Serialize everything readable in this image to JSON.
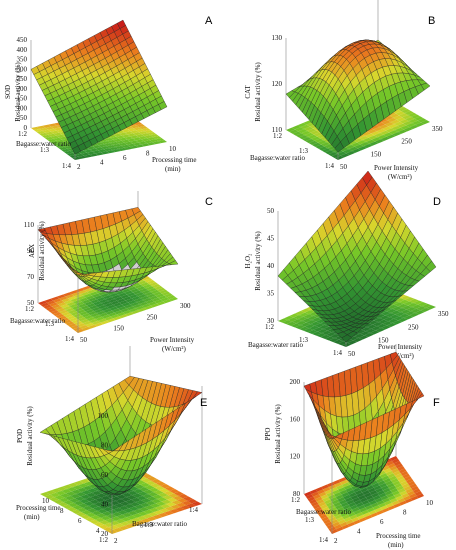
{
  "figure": {
    "panels": [
      {
        "id": "A",
        "label": "A",
        "zlabel": [
          "SOD",
          "Residual activity (%)"
        ],
        "zticks": [
          "0",
          "50",
          "100",
          "150",
          "200",
          "250",
          "300",
          "350",
          "400",
          "450"
        ],
        "xlabel": [
          "Processing time",
          "(min)"
        ],
        "xticks": [
          "2",
          "4",
          "6",
          "8",
          "10"
        ],
        "ylabel": [
          "Bagasse:water ratio"
        ],
        "yticks": [
          "1:4",
          "1:3",
          "1:2"
        ]
      },
      {
        "id": "B",
        "label": "B",
        "zlabel": [
          "CAT",
          "Residual activity (%)"
        ],
        "zticks": [
          "110",
          "120",
          "130"
        ],
        "xlabel": [
          "Power Intensity",
          "(W/cm²)"
        ],
        "xticks": [
          "50",
          "150",
          "250",
          "350"
        ],
        "ylabel": [
          "Bagasse:water ratio"
        ],
        "yticks": [
          "1:4",
          "1:3",
          "1:2"
        ]
      },
      {
        "id": "C",
        "label": "C",
        "zlabel": [
          "APX",
          "Residual activity (%)"
        ],
        "zticks": [
          "50",
          "70",
          "90",
          "110"
        ],
        "xlabel": [
          "Power Intensity",
          "(W/cm²)"
        ],
        "xticks": [
          "50",
          "150",
          "250",
          "300"
        ],
        "ylabel": [
          "Bagasse:water ratio"
        ],
        "yticks": [
          "1:4",
          "1:3",
          "1:2"
        ]
      },
      {
        "id": "D",
        "label": "D",
        "zlabel": [
          "H₂O₂",
          "Residual activity (%)"
        ],
        "zticks": [
          "30",
          "35",
          "40",
          "45",
          "50"
        ],
        "xlabel": [
          "Power Intensity",
          "(W/cm²)"
        ],
        "xticks": [
          "50",
          "150",
          "250",
          "350"
        ],
        "ylabel": [
          "Bagasse:water ratio"
        ],
        "yticks": [
          "1:4",
          "1:3",
          "1:2"
        ]
      },
      {
        "id": "E",
        "label": "E",
        "zlabel": [
          "POD",
          "Residual activity (%)"
        ],
        "zticks": [
          "20",
          "40",
          "60",
          "80",
          "100"
        ],
        "xlabel": [
          "Processing time",
          "(min)"
        ],
        "xticks": [
          "2",
          "4",
          "6",
          "8",
          "10"
        ],
        "ylabel": [
          "Bagasse:water ratio"
        ],
        "yticks": [
          "1:2",
          "1:3",
          "1:4"
        ]
      },
      {
        "id": "F",
        "label": "F",
        "zlabel": [
          "PPO",
          "Residual activity (%)"
        ],
        "zticks": [
          "80",
          "120",
          "160",
          "200"
        ],
        "xlabel": [
          "Processing time",
          "(min)"
        ],
        "xticks": [
          "2",
          "4",
          "6",
          "8",
          "10"
        ],
        "ylabel": [
          "Bagasse:water ratio"
        ],
        "yticks": [
          "1:4",
          "1:3",
          "1:2"
        ]
      }
    ]
  },
  "chart_data": [
    {
      "type": "surface",
      "panel": "A",
      "response": "SOD residual activity (%)",
      "x": {
        "label": "Processing time (min)",
        "range": [
          2,
          10
        ]
      },
      "y": {
        "label": "Bagasse:water ratio",
        "values": [
          "1:2",
          "1:3",
          "1:4"
        ]
      },
      "z": {
        "range": [
          0,
          450
        ]
      },
      "corners": {
        "x_low_y_1:2": 300,
        "x_high_y_1:2": 460,
        "x_low_y_1:4": 30,
        "x_high_y_1:4": 180
      },
      "curvature": -10
    },
    {
      "type": "surface",
      "panel": "B",
      "response": "CAT residual activity (%)",
      "x": {
        "label": "Power Intensity (W/cm²)",
        "range": [
          50,
          350
        ]
      },
      "y": {
        "label": "Bagasse:water ratio",
        "values": [
          "1:2",
          "1:3",
          "1:4"
        ]
      },
      "z": {
        "range": [
          108,
          131
        ]
      },
      "corners": {
        "x_low_y_1:2": 117,
        "x_high_y_1:2": 121,
        "x_low_y_1:4": 110,
        "x_high_y_1:4": 117
      },
      "curvature": 11
    },
    {
      "type": "surface",
      "panel": "C",
      "response": "APX residual activity (%)",
      "x": {
        "label": "Power Intensity (W/cm²)",
        "range": [
          50,
          300
        ]
      },
      "y": {
        "label": "Bagasse:water ratio",
        "values": [
          "1:2",
          "1:3",
          "1:4"
        ]
      },
      "z": {
        "range": [
          45,
          112
        ]
      },
      "corners": {
        "x_low_y_1:2": 108,
        "x_high_y_1:2": 98,
        "x_low_y_1:4": 95,
        "x_high_y_1:4": 75
      },
      "curvature": -38
    },
    {
      "type": "surface",
      "panel": "D",
      "response": "H₂O₂ residual activity (%)",
      "x": {
        "label": "Power Intensity (W/cm²)",
        "range": [
          50,
          350
        ]
      },
      "y": {
        "label": "Bagasse:water ratio",
        "values": [
          "1:2",
          "1:3",
          "1:4"
        ]
      },
      "z": {
        "range": [
          28,
          50
        ]
      },
      "corners": {
        "x_low_y_1:2": 37,
        "x_high_y_1:2": 50,
        "x_low_y_1:4": 29,
        "x_high_y_1:4": 36
      },
      "curvature": -6
    },
    {
      "type": "surface",
      "panel": "E",
      "response": "POD residual activity (%)",
      "x": {
        "label": "Processing time (min)",
        "range": [
          2,
          10
        ]
      },
      "y": {
        "label": "Bagasse:water ratio",
        "values": [
          "1:2",
          "1:3",
          "1:4"
        ]
      },
      "z": {
        "range": [
          15,
          105
        ]
      },
      "corners": {
        "x_low_y_1:2": 100,
        "x_high_y_1:2": 82,
        "x_low_y_1:4": 78,
        "x_high_y_1:4": 62
      },
      "curvature": -60
    },
    {
      "type": "surface",
      "panel": "F",
      "response": "PPO residual activity (%)",
      "x": {
        "label": "Processing time (min)",
        "range": [
          2,
          10
        ]
      },
      "y": {
        "label": "Bagasse:water ratio",
        "values": [
          "1:2",
          "1:3",
          "1:4"
        ]
      },
      "z": {
        "range": [
          70,
          210
        ]
      },
      "corners": {
        "x_low_y_1:2": 205,
        "x_high_y_1:2": 200,
        "x_low_y_1:4": 190,
        "x_high_y_1:4": 195
      },
      "curvature": -115
    }
  ]
}
